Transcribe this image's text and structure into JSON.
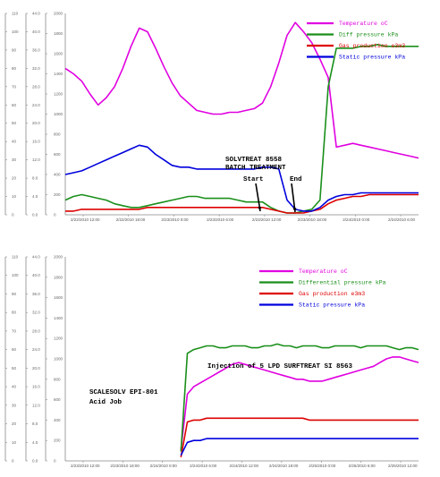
{
  "chart_data": [
    {
      "type": "line",
      "title": "",
      "axes": [
        {
          "ticks": [
            "0",
            "10",
            "20",
            "30",
            "40",
            "50",
            "60",
            "70",
            "80",
            "90",
            "100",
            "110"
          ]
        },
        {
          "ticks": [
            "0.0",
            "4.0",
            "8.0",
            "12.0",
            "16.0",
            "20.0",
            "24.0",
            "28.0",
            "32.0",
            "36.0",
            "40.0",
            "44.0"
          ]
        },
        {
          "ticks": [
            "0",
            "200",
            "400",
            "600",
            "800",
            "1000",
            "1200",
            "1400",
            "1600",
            "1800",
            "2000"
          ]
        }
      ],
      "x_ticks": [
        "2/22/2010 12:00",
        "2/22/2010 18:00",
        "2/23/2010 0:00",
        "2/23/2010 6:00",
        "2/23/2010 12:00",
        "2/23/2010 18:00",
        "2/24/2010 0:00",
        "2/24/2010 6:00"
      ],
      "legend_position": "top-right",
      "series": [
        {
          "name": "Temperature oC",
          "color": "#e000e0",
          "values": [
            80,
            77,
            73,
            66,
            60,
            64,
            70,
            80,
            92,
            102,
            100,
            91,
            81,
            72,
            65,
            61,
            57,
            56,
            55,
            55,
            56,
            56,
            57,
            58,
            61,
            70,
            83,
            98,
            105,
            100,
            94,
            85,
            75,
            37,
            38,
            39,
            38,
            37,
            36,
            35,
            34,
            33,
            32,
            31
          ]
        },
        {
          "name": "Diff pressure kPa",
          "color": "#1a8f1a",
          "values": [
            8,
            10,
            11,
            10,
            9,
            8,
            6,
            5,
            4,
            4,
            5,
            6,
            7,
            8,
            9,
            10,
            10,
            9,
            9,
            9,
            9,
            8,
            7,
            7,
            7,
            4,
            2,
            1,
            1,
            2,
            3,
            8,
            70,
            91,
            91,
            91,
            92,
            92,
            93,
            92,
            92,
            92,
            92,
            92
          ]
        },
        {
          "name": "Gas production e3m3",
          "color": "#dd0000",
          "values": [
            2,
            2,
            3,
            3,
            3,
            3,
            3,
            3,
            3,
            3,
            4,
            4,
            4,
            4,
            4,
            4,
            4,
            4,
            4,
            4,
            4,
            4,
            4,
            4,
            4,
            3,
            2,
            1,
            1,
            1,
            2,
            3,
            6,
            8,
            9,
            10,
            10,
            11,
            11,
            11,
            11,
            11,
            11,
            11
          ]
        },
        {
          "name": "Static pressure kPa",
          "color": "#0000dd",
          "values": [
            22,
            23,
            24,
            26,
            28,
            30,
            32,
            34,
            36,
            38,
            37,
            33,
            30,
            27,
            26,
            26,
            25,
            25,
            25,
            25,
            25,
            25,
            25,
            25,
            26,
            26,
            25,
            8,
            3,
            2,
            2,
            4,
            8,
            10,
            11,
            11,
            12,
            12,
            12,
            12,
            12,
            12,
            12,
            12
          ]
        }
      ],
      "annotations": [
        "SOLVTREAT 8558",
        "BATCH TREATMENT",
        "Start",
        "End"
      ]
    },
    {
      "type": "line",
      "title": "",
      "axes": [
        {
          "ticks": [
            "0",
            "10",
            "20",
            "30",
            "40",
            "50",
            "60",
            "70",
            "80",
            "90",
            "100",
            "110"
          ]
        },
        {
          "ticks": [
            "0.0",
            "4.0",
            "8.0",
            "12.0",
            "16.0",
            "20.0",
            "24.0",
            "28.0",
            "32.0",
            "36.0",
            "40.0",
            "44.0"
          ]
        },
        {
          "ticks": [
            "0",
            "200",
            "400",
            "600",
            "800",
            "1000",
            "1200",
            "1400",
            "1600",
            "1800",
            "2000"
          ]
        }
      ],
      "x_ticks": [
        "2/23/2010 12:00",
        "2/23/2010 18:00",
        "2/24/2010 0:00",
        "2/24/2010 6:00",
        "2/24/2010 12:00",
        "2/24/2010 18:00",
        "2/25/2010 0:00",
        "2/25/2010 6:00",
        "2/25/2010 12:00"
      ],
      "legend_position": "top-right",
      "series": [
        {
          "name": "Temperature oC",
          "color": "#e000e0",
          "values": [
            null,
            null,
            null,
            null,
            null,
            null,
            null,
            null,
            null,
            null,
            null,
            null,
            null,
            null,
            null,
            null,
            null,
            null,
            6,
            36,
            40,
            42,
            44,
            46,
            48,
            50,
            52,
            53,
            52,
            51,
            50,
            49,
            48,
            47,
            46,
            45,
            44,
            44,
            43,
            43,
            43,
            44,
            45,
            46,
            47,
            48,
            49,
            50,
            51,
            53,
            55,
            56,
            56,
            55,
            54,
            53
          ]
        },
        {
          "name": "Differential pressure kPa",
          "color": "#1a8f1a",
          "values": [
            null,
            null,
            null,
            null,
            null,
            null,
            null,
            null,
            null,
            null,
            null,
            null,
            null,
            null,
            null,
            null,
            null,
            null,
            5,
            58,
            60,
            61,
            62,
            62,
            61,
            61,
            62,
            62,
            62,
            61,
            61,
            62,
            62,
            63,
            62,
            62,
            61,
            62,
            62,
            62,
            61,
            61,
            62,
            62,
            62,
            62,
            61,
            62,
            62,
            62,
            62,
            61,
            60,
            61,
            61,
            60
          ]
        },
        {
          "name": "Gas production e3m3",
          "color": "#dd0000",
          "values": [
            null,
            null,
            null,
            null,
            null,
            null,
            null,
            null,
            null,
            null,
            null,
            null,
            null,
            null,
            null,
            null,
            null,
            null,
            2,
            21,
            22,
            22,
            23,
            23,
            23,
            23,
            23,
            23,
            23,
            23,
            23,
            23,
            23,
            23,
            23,
            23,
            23,
            23,
            22,
            22,
            22,
            22,
            22,
            22,
            22,
            22,
            22,
            22,
            22,
            22,
            22,
            22,
            22,
            22,
            22,
            22
          ]
        },
        {
          "name": "Static pressure kPa",
          "color": "#0000dd",
          "values": [
            null,
            null,
            null,
            null,
            null,
            null,
            null,
            null,
            null,
            null,
            null,
            null,
            null,
            null,
            null,
            null,
            null,
            null,
            3,
            10,
            11,
            11,
            12,
            12,
            12,
            12,
            12,
            12,
            12,
            12,
            12,
            12,
            12,
            12,
            12,
            12,
            12,
            12,
            12,
            12,
            12,
            12,
            12,
            12,
            12,
            12,
            12,
            12,
            12,
            12,
            12,
            12,
            12,
            12,
            12,
            12
          ]
        }
      ],
      "annotations": [
        "Injection of 5 LPD SURFTREAT SI 8563",
        "SCALESOLV EPI-801",
        "Acid Job"
      ]
    }
  ]
}
